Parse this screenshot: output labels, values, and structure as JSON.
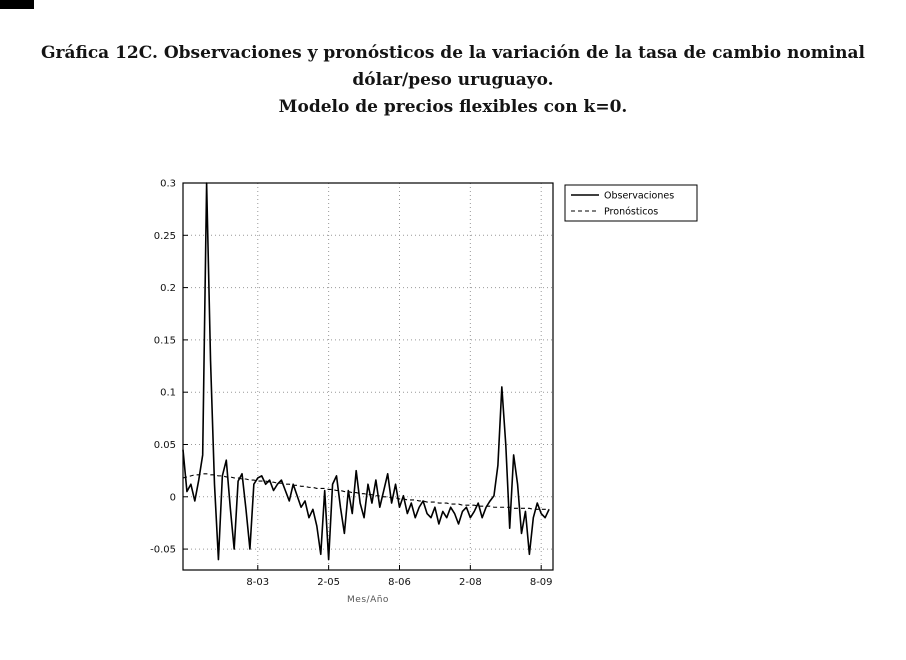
{
  "page": {
    "title_lines": [
      "Gráfica 12C. Observaciones y pronósticos de la variación de la tasa de cambio nominal",
      "dólar/peso uruguayo.",
      "Modelo de precios flexibles con k=0."
    ]
  },
  "colors": {
    "background": "#ffffff",
    "axis": "#000000",
    "grid": "#999999",
    "series": "#000000"
  },
  "chart_data": {
    "type": "line",
    "title": "",
    "xlabel": "Mes/Año",
    "ylabel": "",
    "grid": true,
    "legend_position": "outside-top-right",
    "frequency": "monthly",
    "x_start_month": "1-02",
    "x_end_month": "10-09",
    "xlim": [
      0,
      94
    ],
    "ylim": [
      -0.07,
      0.3
    ],
    "xticks": {
      "positions": [
        19,
        37,
        55,
        73,
        91
      ],
      "labels": [
        "8-03",
        "2-05",
        "8-06",
        "2-08",
        "8-09"
      ]
    },
    "yticks": {
      "positions": [
        -0.05,
        0,
        0.05,
        0.1,
        0.15,
        0.2,
        0.25,
        0.3
      ],
      "labels": [
        "-0.05",
        "0",
        "0.05",
        "0.1",
        "0.15",
        "0.2",
        "0.25",
        "0.3"
      ]
    },
    "series": [
      {
        "name": "Observaciones",
        "style": "solid",
        "color": "#000000",
        "values": [
          0.045,
          0.005,
          0.012,
          -0.004,
          0.016,
          0.04,
          0.3,
          0.13,
          0.012,
          -0.06,
          0.02,
          0.035,
          -0.01,
          -0.05,
          0.015,
          0.022,
          -0.012,
          -0.05,
          0.012,
          0.018,
          0.02,
          0.012,
          0.016,
          0.006,
          0.012,
          0.016,
          0.006,
          -0.004,
          0.012,
          0.001,
          -0.01,
          -0.004,
          -0.02,
          -0.012,
          -0.028,
          -0.055,
          0.006,
          -0.06,
          0.012,
          0.02,
          -0.01,
          -0.035,
          0.006,
          -0.016,
          0.025,
          -0.006,
          -0.02,
          0.012,
          -0.006,
          0.016,
          -0.01,
          0.006,
          0.022,
          -0.006,
          0.012,
          -0.01,
          0.001,
          -0.016,
          -0.006,
          -0.02,
          -0.01,
          -0.004,
          -0.016,
          -0.02,
          -0.01,
          -0.026,
          -0.014,
          -0.02,
          -0.01,
          -0.016,
          -0.026,
          -0.014,
          -0.01,
          -0.02,
          -0.014,
          -0.006,
          -0.02,
          -0.01,
          -0.004,
          0.001,
          0.03,
          0.105,
          0.05,
          -0.03,
          0.04,
          0.012,
          -0.035,
          -0.014,
          -0.055,
          -0.02,
          -0.006,
          -0.016,
          -0.02,
          -0.012
        ]
      },
      {
        "name": "Pronósticos",
        "style": "dashed",
        "color": "#000000",
        "values": [
          0.018,
          0.019,
          0.02,
          0.021,
          0.021,
          0.022,
          0.022,
          0.021,
          0.021,
          0.02,
          0.02,
          0.019,
          0.019,
          0.018,
          0.018,
          0.017,
          0.017,
          0.016,
          0.016,
          0.015,
          0.015,
          0.015,
          0.014,
          0.014,
          0.013,
          0.013,
          0.012,
          0.012,
          0.011,
          0.011,
          0.01,
          0.01,
          0.009,
          0.009,
          0.008,
          0.008,
          0.008,
          0.007,
          0.007,
          0.006,
          0.006,
          0.005,
          0.005,
          0.004,
          0.004,
          0.003,
          0.003,
          0.002,
          0.002,
          0.001,
          0.001,
          0.0,
          0.0,
          -0.001,
          -0.001,
          -0.002,
          -0.002,
          -0.003,
          -0.003,
          -0.003,
          -0.004,
          -0.004,
          -0.005,
          -0.005,
          -0.005,
          -0.006,
          -0.006,
          -0.006,
          -0.007,
          -0.007,
          -0.007,
          -0.008,
          -0.008,
          -0.008,
          -0.008,
          -0.009,
          -0.009,
          -0.009,
          -0.009,
          -0.01,
          -0.01,
          -0.01,
          -0.01,
          -0.01,
          -0.011,
          -0.011,
          -0.011,
          -0.011,
          -0.011,
          -0.012,
          -0.012,
          -0.012,
          -0.012,
          -0.012
        ]
      }
    ]
  }
}
